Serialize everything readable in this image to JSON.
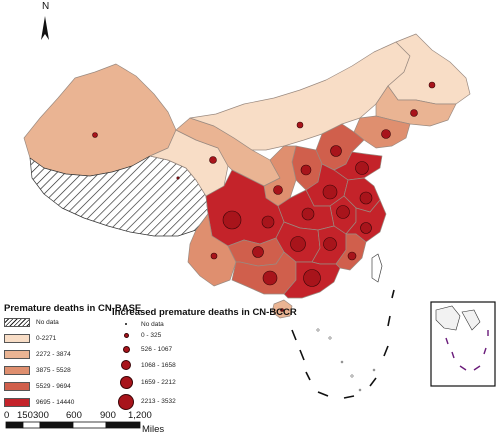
{
  "north_label": "N",
  "legend_base": {
    "title": "Premature deaths in CN-BASE",
    "items": [
      {
        "label": "No data",
        "color": "hatch"
      },
      {
        "label": "0-2271",
        "color": "#f8ddc6"
      },
      {
        "label": "2272 - 3874",
        "color": "#eab493"
      },
      {
        "label": "3875 - 5528",
        "color": "#df8f6f"
      },
      {
        "label": "5529 - 9694",
        "color": "#d05f4c"
      },
      {
        "label": "9695 - 14440",
        "color": "#c4232a"
      }
    ]
  },
  "legend_bccr": {
    "title": "Increased premature deaths in CN-BCCR",
    "items": [
      {
        "label": "No data",
        "size": 2
      },
      {
        "label": "0 - 325",
        "size": 5
      },
      {
        "label": "526 - 1067",
        "size": 7
      },
      {
        "label": "1068 - 1658",
        "size": 10
      },
      {
        "label": "1659 - 2212",
        "size": 13
      },
      {
        "label": "2213 - 3532",
        "size": 16
      }
    ]
  },
  "scale_bar": {
    "ticks": [
      "0",
      "150",
      "300",
      "600",
      "900",
      "1,200"
    ],
    "unit": "Miles"
  },
  "colors": {
    "class1": "#f8ddc6",
    "class2": "#eab493",
    "class3": "#df8f6f",
    "class4": "#d05f4c",
    "class5": "#c4232a",
    "dot": "#a8141b",
    "border": "#8a7a70"
  }
}
